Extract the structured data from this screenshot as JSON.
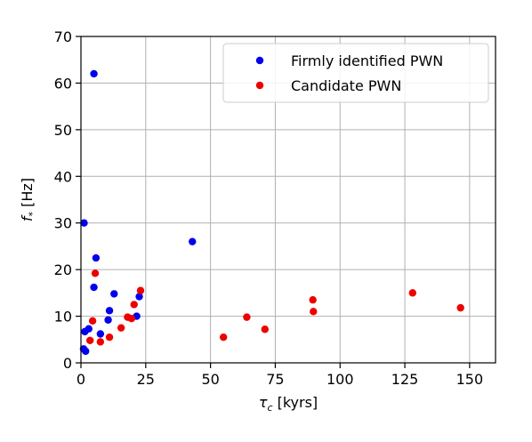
{
  "chart_data": {
    "type": "scatter",
    "title": "",
    "xlabel": {
      "symbol": "τ",
      "subscript": "c",
      "unit": " [kyrs]"
    },
    "ylabel": {
      "symbol": "f",
      "subscript": "*",
      "unit": " [Hz]"
    },
    "xlim": [
      0,
      160
    ],
    "ylim": [
      0,
      70
    ],
    "xticks": [
      0,
      25,
      50,
      75,
      100,
      125,
      150
    ],
    "yticks": [
      0,
      10,
      20,
      30,
      40,
      50,
      60,
      70
    ],
    "grid": true,
    "legend_position": "top-right",
    "series": [
      {
        "name": "Firmly identified PWN",
        "color": "#0000ee",
        "points": [
          [
            1.2,
            30.0
          ],
          [
            5.0,
            62.0
          ],
          [
            5.8,
            22.5
          ],
          [
            43.0,
            26.0
          ],
          [
            5.0,
            16.2
          ],
          [
            12.8,
            14.8
          ],
          [
            22.5,
            14.2
          ],
          [
            11.0,
            11.2
          ],
          [
            21.5,
            10.0
          ],
          [
            10.5,
            9.2
          ],
          [
            3.0,
            7.3
          ],
          [
            1.5,
            6.7
          ],
          [
            7.5,
            6.2
          ],
          [
            1.0,
            3.0
          ],
          [
            1.8,
            2.5
          ]
        ]
      },
      {
        "name": "Candidate PWN",
        "color": "#ee0000",
        "points": [
          [
            5.5,
            19.2
          ],
          [
            23.0,
            15.5
          ],
          [
            128.0,
            15.0
          ],
          [
            89.5,
            13.5
          ],
          [
            20.5,
            12.5
          ],
          [
            146.5,
            11.8
          ],
          [
            89.7,
            11.0
          ],
          [
            18.0,
            9.8
          ],
          [
            64.0,
            9.8
          ],
          [
            19.5,
            9.5
          ],
          [
            4.5,
            9.0
          ],
          [
            15.5,
            7.5
          ],
          [
            71.0,
            7.2
          ],
          [
            55.0,
            5.5
          ],
          [
            11.0,
            5.5
          ],
          [
            3.5,
            4.8
          ],
          [
            7.5,
            4.5
          ]
        ]
      }
    ]
  }
}
